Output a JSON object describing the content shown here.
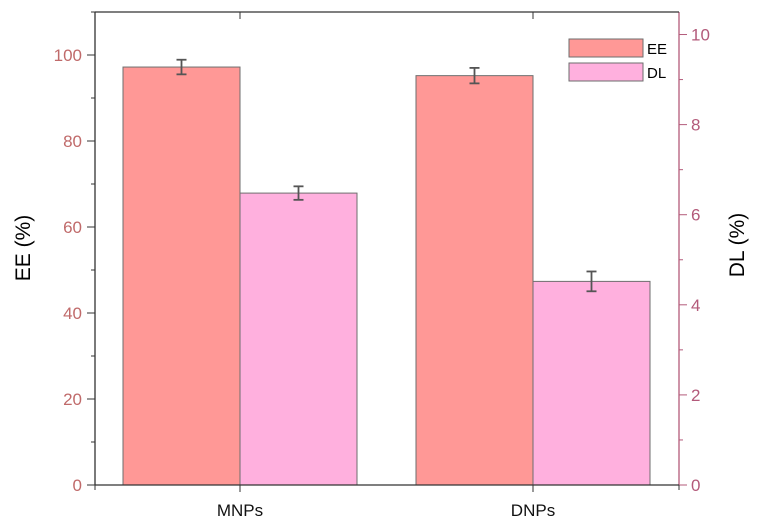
{
  "chart_data": {
    "type": "bar",
    "categories": [
      "MNPs",
      "DNPs"
    ],
    "series": [
      {
        "name": "EE",
        "axis": "left",
        "values": [
          97.2,
          95.2
        ],
        "errors": [
          1.7,
          1.8
        ],
        "color": "#ff9896"
      },
      {
        "name": "DL",
        "axis": "right",
        "values": [
          6.48,
          4.52
        ],
        "errors": [
          0.15,
          0.22
        ],
        "color": "#ffb0de"
      }
    ],
    "ylabel_left": "EE (%)",
    "ylabel_right": "DL (%)",
    "xlabel": "",
    "ylim_left": [
      0,
      110
    ],
    "ylim_right": [
      0,
      10.5
    ],
    "yticks_left": [
      0,
      20,
      40,
      60,
      80,
      100
    ],
    "yticks_right": [
      0,
      2,
      4,
      6,
      8,
      10
    ],
    "left_axis_color": "#c06a6a",
    "right_axis_color": "#b35a7a",
    "legend_position": "top-right",
    "grid": false
  }
}
